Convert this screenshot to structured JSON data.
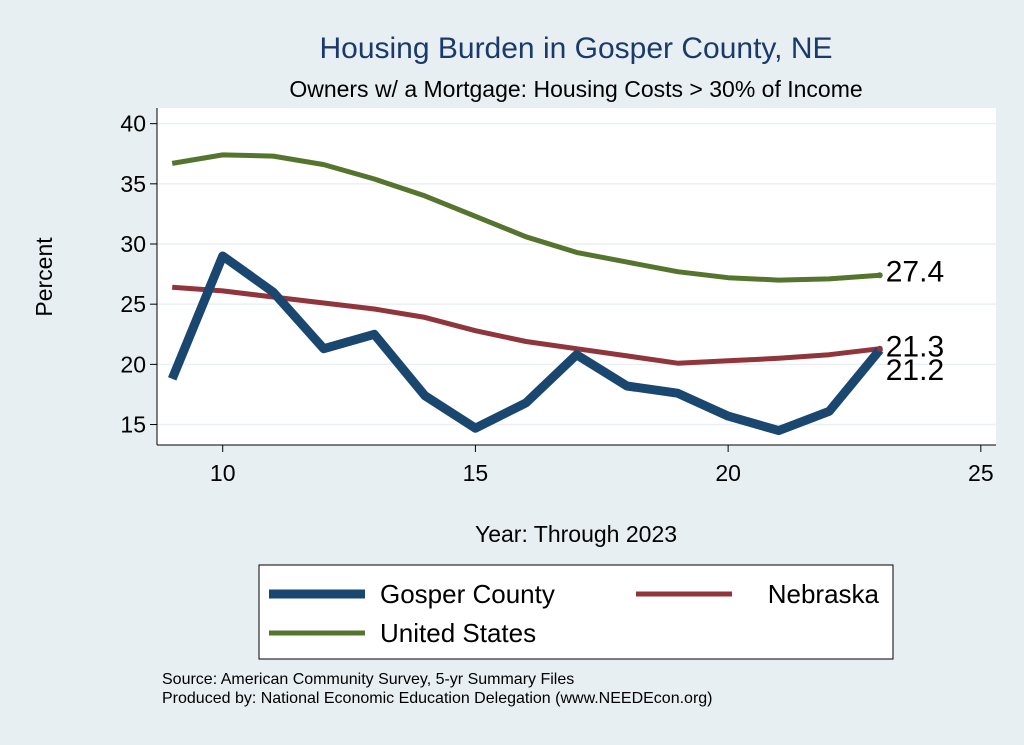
{
  "chart_data": {
    "type": "line",
    "title": "Housing Burden in Gosper County, NE",
    "subtitle": "Owners w/ a Mortgage: Housing Costs > 30% of Income",
    "xlabel": "Year: Through 2023",
    "ylabel": "Percent",
    "xlim": [
      8.7,
      25.3
    ],
    "ylim": [
      13.3,
      41.3
    ],
    "xticks": [
      10,
      15,
      20,
      25
    ],
    "yticks": [
      15,
      20,
      25,
      30,
      35,
      40
    ],
    "grid": true,
    "legend": "bottom",
    "series": [
      {
        "name": "Gosper County",
        "color": "#1a476f",
        "x": [
          9,
          10,
          11,
          12,
          13,
          14,
          15,
          16,
          17,
          18,
          19,
          20,
          21,
          22,
          23
        ],
        "values": [
          18.8,
          29.0,
          26.0,
          21.3,
          22.5,
          17.4,
          14.7,
          16.8,
          20.8,
          18.2,
          17.6,
          15.7,
          14.5,
          16.1,
          21.2
        ],
        "end_label": "21.2"
      },
      {
        "name": "Nebraska",
        "color": "#90353b",
        "x": [
          9,
          10,
          11,
          12,
          13,
          14,
          15,
          16,
          17,
          18,
          19,
          20,
          21,
          22,
          23
        ],
        "values": [
          26.4,
          26.1,
          25.6,
          25.1,
          24.6,
          23.9,
          22.8,
          21.9,
          21.3,
          20.7,
          20.1,
          20.3,
          20.5,
          20.8,
          21.3
        ],
        "end_label": "21.3"
      },
      {
        "name": "United States",
        "color": "#55752f",
        "x": [
          9,
          10,
          11,
          12,
          13,
          14,
          15,
          16,
          17,
          18,
          19,
          20,
          21,
          22,
          23
        ],
        "values": [
          36.7,
          37.4,
          37.3,
          36.6,
          35.4,
          34.0,
          32.3,
          30.6,
          29.3,
          28.5,
          27.7,
          27.2,
          27.0,
          27.1,
          27.4
        ],
        "end_label": "27.4"
      }
    ]
  },
  "footer": {
    "source": "Source: American Community Survey, 5-yr Summary Files",
    "producer": "Produced by: National Economic Education Delegation (www.NEEDEcon.org)"
  }
}
